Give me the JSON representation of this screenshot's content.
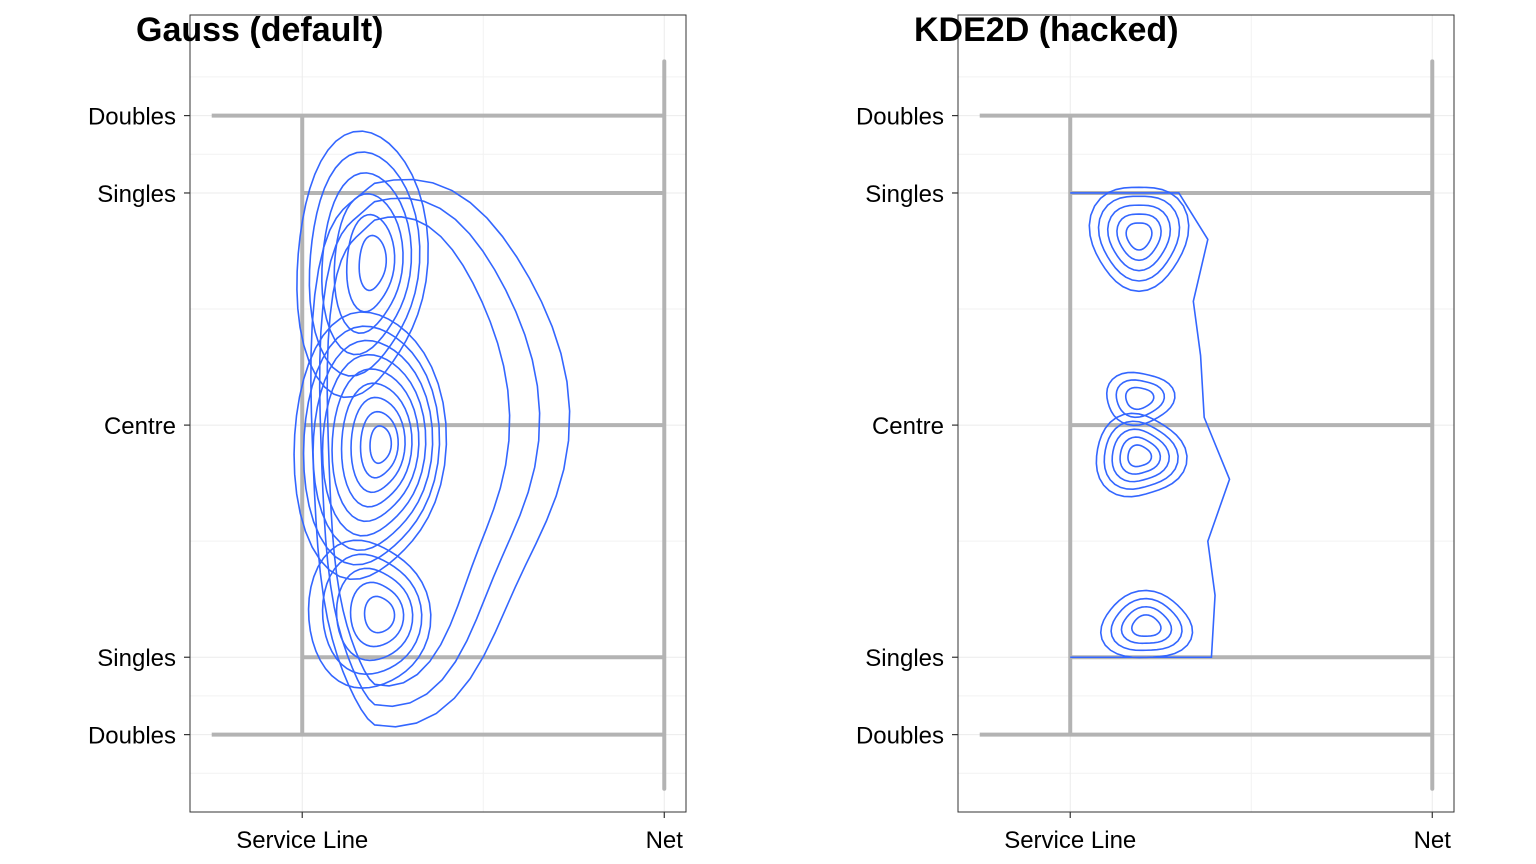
{
  "page": {
    "background": "#ffffff"
  },
  "chart_data": [
    {
      "type": "contour",
      "title": "Gauss (default)",
      "x_ticks": [
        "Service Line",
        "Net"
      ],
      "y_ticks": [
        "Doubles",
        "Singles",
        "Centre",
        "Singles",
        "Doubles"
      ],
      "y_tick_values": [
        4,
        3,
        0,
        -3,
        -4
      ],
      "x_tick_values": [
        0,
        1
      ],
      "xlim": [
        -0.31,
        1.06
      ],
      "ylim": [
        -5.0,
        5.3
      ],
      "grid": true,
      "court_color": "#b3b3b3",
      "contour_color": "#3366ff",
      "density_peaks": [
        {
          "label": "upper cluster",
          "x": 0.21,
          "y": 2.4
        },
        {
          "label": "centre cluster",
          "x": 0.21,
          "y": -0.25
        },
        {
          "label": "lower cluster",
          "x": 0.21,
          "y": -2.5
        }
      ]
    },
    {
      "type": "contour",
      "title": "KDE2D (hacked)",
      "x_ticks": [
        "Service Line",
        "Net"
      ],
      "y_ticks": [
        "Doubles",
        "Singles",
        "Centre",
        "Singles",
        "Doubles"
      ],
      "y_tick_values": [
        4,
        3,
        0,
        -3,
        -4
      ],
      "x_tick_values": [
        0,
        1
      ],
      "xlim": [
        -0.31,
        1.06
      ],
      "ylim": [
        -5.0,
        5.3
      ],
      "grid": true,
      "court_color": "#b3b3b3",
      "contour_color": "#3366ff",
      "density_peaks": [
        {
          "label": "upper cluster",
          "x": 0.19,
          "y": 2.4
        },
        {
          "label": "centre-upper cluster",
          "x": 0.19,
          "y": 0.3
        },
        {
          "label": "centre-lower cluster",
          "x": 0.19,
          "y": -0.4
        },
        {
          "label": "lower cluster",
          "x": 0.2,
          "y": -2.5
        }
      ]
    }
  ]
}
